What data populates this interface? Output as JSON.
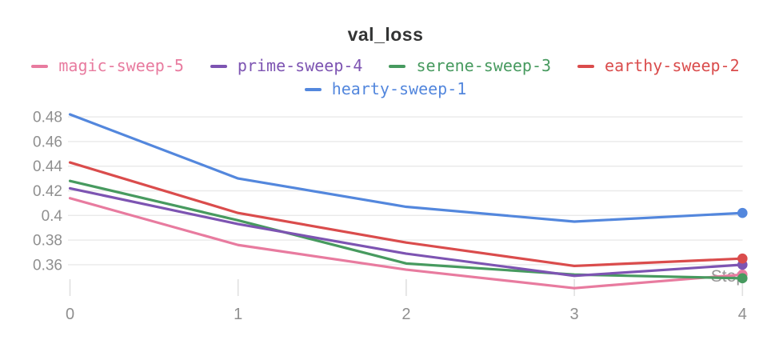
{
  "header": {
    "title": "val_loss"
  },
  "chart_data": {
    "type": "line",
    "title": "val_loss",
    "xlabel": "Step",
    "ylabel": "",
    "x": [
      0,
      1,
      2,
      3,
      4
    ],
    "x_tick_labels": [
      "0",
      "1",
      "2",
      "3",
      "4"
    ],
    "y_tick_values": [
      0.36,
      0.38,
      0.4,
      0.42,
      0.44,
      0.46,
      0.48
    ],
    "y_tick_labels": [
      "0.36",
      "0.38",
      "0.4",
      "0.42",
      "0.44",
      "0.46",
      "0.48"
    ],
    "xlim": [
      0,
      4
    ],
    "ylim": [
      0.338,
      0.492
    ],
    "grid": true,
    "legend_position": "top",
    "end_point_markers": true,
    "series": [
      {
        "name": "magic-sweep-5",
        "color": "#E87B9F",
        "values": [
          0.414,
          0.376,
          0.356,
          0.341,
          0.352
        ]
      },
      {
        "name": "prime-sweep-4",
        "color": "#7D54B2",
        "values": [
          0.422,
          0.393,
          0.369,
          0.351,
          0.36
        ]
      },
      {
        "name": "serene-sweep-3",
        "color": "#479A5F",
        "values": [
          0.428,
          0.396,
          0.361,
          0.352,
          0.349
        ]
      },
      {
        "name": "earthy-sweep-2",
        "color": "#DA4C4C",
        "values": [
          0.443,
          0.402,
          0.378,
          0.359,
          0.365
        ]
      },
      {
        "name": "hearty-sweep-1",
        "color": "#5387DD",
        "values": [
          0.482,
          0.43,
          0.407,
          0.395,
          0.402
        ]
      }
    ],
    "draw_order": [
      0,
      2,
      1,
      3,
      4
    ]
  },
  "colors": {
    "title_text": "#333434",
    "gridline": "#e9e9e9",
    "tick_mark": "#e0e0e0",
    "axis_label_text": "#8f8f8f",
    "x_axis_title_text": "#979797",
    "background": "#ffffff"
  }
}
